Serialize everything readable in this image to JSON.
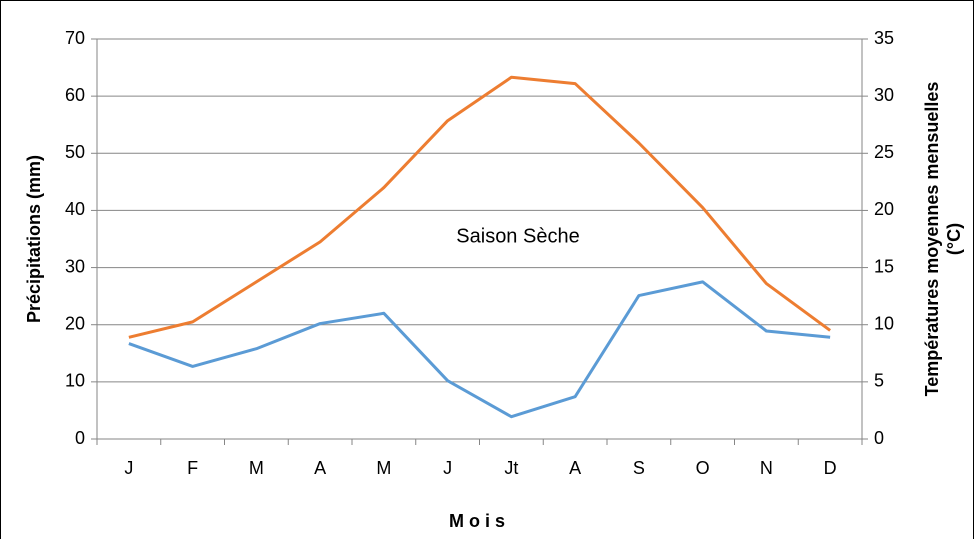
{
  "chart_data": {
    "type": "line",
    "xlabel": "M o i s",
    "ylabel": "Précipitations (mm)",
    "y2label": [
      "Températures moyennes mensuelles",
      "(°C)"
    ],
    "annotation": "Saison  Sèche",
    "categories": [
      "J",
      "F",
      "M",
      "A",
      "M",
      "J",
      "Jt",
      "A",
      "S",
      "O",
      "N",
      "D"
    ],
    "series": [
      {
        "color": "#5b9bd5",
        "values": [
          16.7,
          12.7,
          15.8,
          20.2,
          22,
          10.2,
          3.9,
          7.4,
          25.1,
          27.5,
          18.9,
          17.8
        ]
      },
      {
        "color": "#ed7d31",
        "axis": "y2",
        "values": [
          8.9,
          10.25,
          13.75,
          17.25,
          22,
          27.85,
          31.65,
          31.1,
          25.9,
          20.25,
          13.6,
          9.5
        ]
      }
    ],
    "ylim": [
      0,
      70
    ],
    "yticks": [
      0,
      10,
      20,
      30,
      40,
      50,
      60,
      70
    ],
    "y2lim": [
      0,
      35
    ],
    "y2ticks": [
      0,
      5,
      10,
      15,
      20,
      25,
      30,
      35
    ],
    "grid": true
  }
}
